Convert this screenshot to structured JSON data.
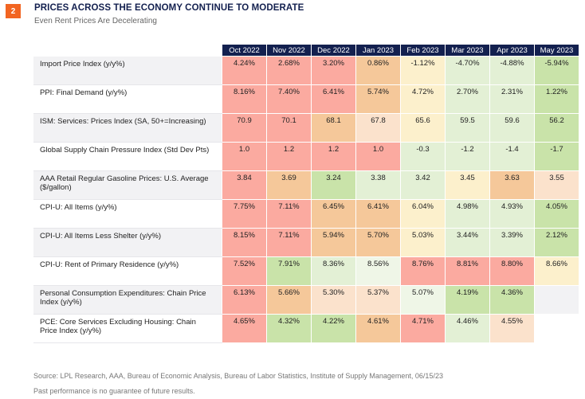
{
  "badge": "2",
  "title": "PRICES ACROSS THE ECONOMY CONTINUE TO MODERATE",
  "subtitle": "Even Rent Prices Are Decelerating",
  "chart_data": {
    "type": "heatmap",
    "columns": [
      "Oct 2022",
      "Nov 2022",
      "Dec 2022",
      "Jan 2023",
      "Feb 2023",
      "Mar 2023",
      "Apr 2023",
      "May 2023"
    ],
    "palette": {
      "R": "#fbaaa0",
      "O": "#f5c89a",
      "P": "#fbe2cc",
      "Y": "#fcf0cc",
      "L": "#e3f0d5",
      "V": "#eff6e7",
      "G": "#c9e3a9"
    },
    "rows": [
      {
        "label": "Import Price Index (y/y%)",
        "values": [
          "4.24%",
          "2.68%",
          "3.20%",
          "0.86%",
          "-1.12%",
          "-4.70%",
          "-4.88%",
          "-5.94%"
        ],
        "colors": [
          "R",
          "R",
          "R",
          "O",
          "Y",
          "L",
          "L",
          "G"
        ]
      },
      {
        "label": "PPI: Final Demand (y/y%)",
        "values": [
          "8.16%",
          "7.40%",
          "6.41%",
          "5.74%",
          "4.72%",
          "2.70%",
          "2.31%",
          "1.22%"
        ],
        "colors": [
          "R",
          "R",
          "R",
          "O",
          "Y",
          "L",
          "L",
          "G"
        ]
      },
      {
        "label": "ISM: Services: Prices Index (SA, 50+=Increasing)",
        "values": [
          "70.9",
          "70.1",
          "68.1",
          "67.8",
          "65.6",
          "59.5",
          "59.6",
          "56.2"
        ],
        "colors": [
          "R",
          "R",
          "O",
          "P",
          "Y",
          "L",
          "L",
          "G"
        ]
      },
      {
        "label": "Global Supply Chain Pressure Index (Std Dev Pts)",
        "values": [
          "1.0",
          "1.2",
          "1.2",
          "1.0",
          "-0.3",
          "-1.2",
          "-1.4",
          "-1.7"
        ],
        "colors": [
          "R",
          "R",
          "R",
          "R",
          "L",
          "L",
          "L",
          "G"
        ]
      },
      {
        "label": "AAA Retail Regular Gasoline Prices: U.S. Average ($/gallon)",
        "values": [
          "3.84",
          "3.69",
          "3.24",
          "3.38",
          "3.42",
          "3.45",
          "3.63",
          "3.55"
        ],
        "colors": [
          "R",
          "O",
          "G",
          "L",
          "L",
          "Y",
          "O",
          "P"
        ]
      },
      {
        "label": "CPI-U: All Items (y/y%)",
        "values": [
          "7.75%",
          "7.11%",
          "6.45%",
          "6.41%",
          "6.04%",
          "4.98%",
          "4.93%",
          "4.05%"
        ],
        "colors": [
          "R",
          "R",
          "O",
          "O",
          "Y",
          "L",
          "L",
          "G"
        ]
      },
      {
        "label": "CPI-U: All Items Less Shelter (y/y%)",
        "values": [
          "8.15%",
          "7.11%",
          "5.94%",
          "5.70%",
          "5.03%",
          "3.44%",
          "3.39%",
          "2.12%"
        ],
        "colors": [
          "R",
          "R",
          "O",
          "O",
          "Y",
          "L",
          "L",
          "G"
        ]
      },
      {
        "label": "CPI-U: Rent of Primary Residence (y/y%)",
        "values": [
          "7.52%",
          "7.91%",
          "8.36%",
          "8.56%",
          "8.76%",
          "8.81%",
          "8.80%",
          "8.66%"
        ],
        "colors": [
          "R",
          "G",
          "L",
          "V",
          "R",
          "R",
          "R",
          "Y"
        ]
      },
      {
        "label": "Personal Consumption Expenditures: Chain Price Index (y/y%)",
        "values": [
          "6.13%",
          "5.66%",
          "5.30%",
          "5.37%",
          "5.07%",
          "4.19%",
          "4.36%",
          ""
        ],
        "colors": [
          "R",
          "O",
          "P",
          "P",
          "V",
          "G",
          "G",
          ""
        ]
      },
      {
        "label": "PCE: Core Services Excluding Housing: Chain Price Index (y/y%)",
        "values": [
          "4.65%",
          "4.32%",
          "4.22%",
          "4.61%",
          "4.71%",
          "4.46%",
          "4.55%",
          ""
        ],
        "colors": [
          "R",
          "G",
          "G",
          "O",
          "R",
          "L",
          "P",
          ""
        ]
      }
    ]
  },
  "source": "Source: LPL Research, AAA, Bureau of Economic Analysis, Bureau of Labor Statistics, Institute of Supply Management, 06/15/23",
  "note": "Past performance is no guarantee of future results."
}
